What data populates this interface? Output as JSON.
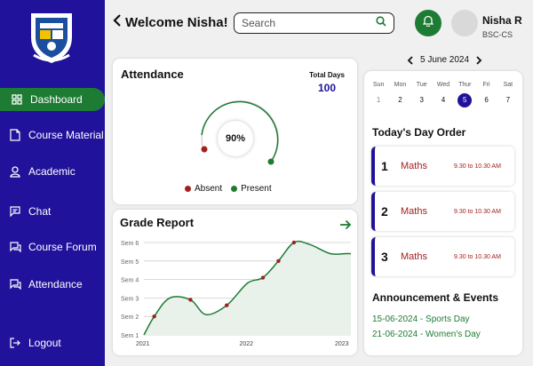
{
  "sidebar": {
    "items": [
      {
        "label": "Dashboard",
        "icon": "grid-icon"
      },
      {
        "label": "Course Material",
        "icon": "document-icon"
      },
      {
        "label": "Academic",
        "icon": "person-icon"
      },
      {
        "label": "Chat",
        "icon": "chat-icon"
      },
      {
        "label": "Course Forum",
        "icon": "forum-icon"
      },
      {
        "label": "Attendance",
        "icon": "attendance-icon"
      }
    ],
    "logout": "Logout"
  },
  "header": {
    "title": "Welcome Nisha!",
    "search_placeholder": "Search",
    "user_name": "Nisha  R",
    "user_course": "BSC-CS"
  },
  "attendance": {
    "title": "Attendance",
    "total_label": "Total Days",
    "total_value": "100",
    "percent": "90%",
    "legend_absent": "Absent",
    "legend_present": "Present",
    "colors": {
      "present": "#1e7b34",
      "absent": "#a32020"
    }
  },
  "grade_report": {
    "title": "Grade Report"
  },
  "chart_data": {
    "type": "line",
    "x_ticks": [
      "2021",
      "2022",
      "2023"
    ],
    "y_ticks": [
      "Sem 1",
      "Sem 2",
      "Sem 3",
      "Sem 4",
      "Sem 5",
      "Sem 6"
    ],
    "x": [
      2021.0,
      2021.1,
      2021.25,
      2021.45,
      2021.6,
      2021.8,
      2022.0,
      2022.15,
      2022.3,
      2022.45,
      2022.6,
      2022.8,
      2022.95,
      2023.0
    ],
    "y": [
      1.0,
      2.0,
      3.0,
      2.9,
      2.1,
      2.6,
      3.8,
      4.1,
      5.0,
      6.0,
      5.9,
      5.4,
      5.4,
      5.4
    ],
    "marker_indices": [
      1,
      3,
      5,
      7,
      8,
      9
    ],
    "xlim": [
      2021,
      2023
    ],
    "ylim": [
      1,
      6
    ],
    "fill": true,
    "grid": true,
    "colors": {
      "line": "#1e7b34",
      "marker": "#a32020",
      "fill": "#e8f1ea"
    }
  },
  "calendar": {
    "month_label": "5 June 2024",
    "day_names": [
      "Sun",
      "Mon",
      "Tue",
      "Wed",
      "Thur",
      "Fri",
      "Sat"
    ],
    "dates": [
      "1",
      "2",
      "3",
      "4",
      "5",
      "6",
      "7"
    ],
    "selected": "5"
  },
  "todays_order": {
    "title": "Today's Day Order",
    "periods": [
      {
        "num": "1",
        "subject": "Maths",
        "time": "9.30 to 10.30 AM"
      },
      {
        "num": "2",
        "subject": "Maths",
        "time": "9.30 to 10.30 AM"
      },
      {
        "num": "3",
        "subject": "Maths",
        "time": "9.30 to 10.30 AM"
      }
    ]
  },
  "announcements": {
    "title": "Announcement & Events",
    "events": [
      "15-06-2024 - Sports Day",
      "21-06-2024 - Women's Day"
    ]
  }
}
